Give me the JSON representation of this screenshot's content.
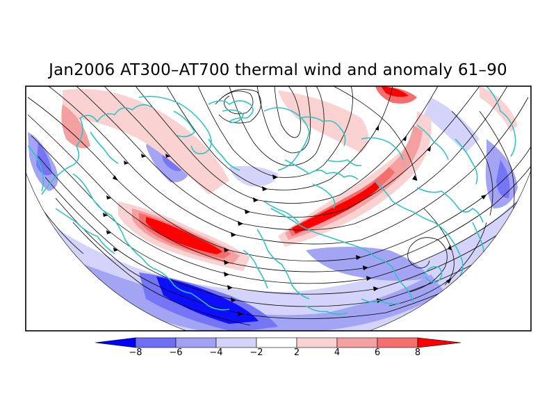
{
  "title": "Jan2006 AT300–AT700 thermal wind and anomaly 61–90",
  "colorbar": {
    "labels": [
      "−8",
      "−6",
      "−4",
      "−2",
      "2",
      "4",
      "6",
      "8"
    ],
    "colors": [
      "#0000ff",
      "#6e6ef5",
      "#a0a0f5",
      "#d2d2fa",
      "#ffffff",
      "#fad2d2",
      "#f5a0a0",
      "#f56e6e",
      "#ff0000"
    ]
  },
  "colors": {
    "coastline": "#2ec4c4",
    "streamline": "#000000",
    "frame": "#000000"
  }
}
